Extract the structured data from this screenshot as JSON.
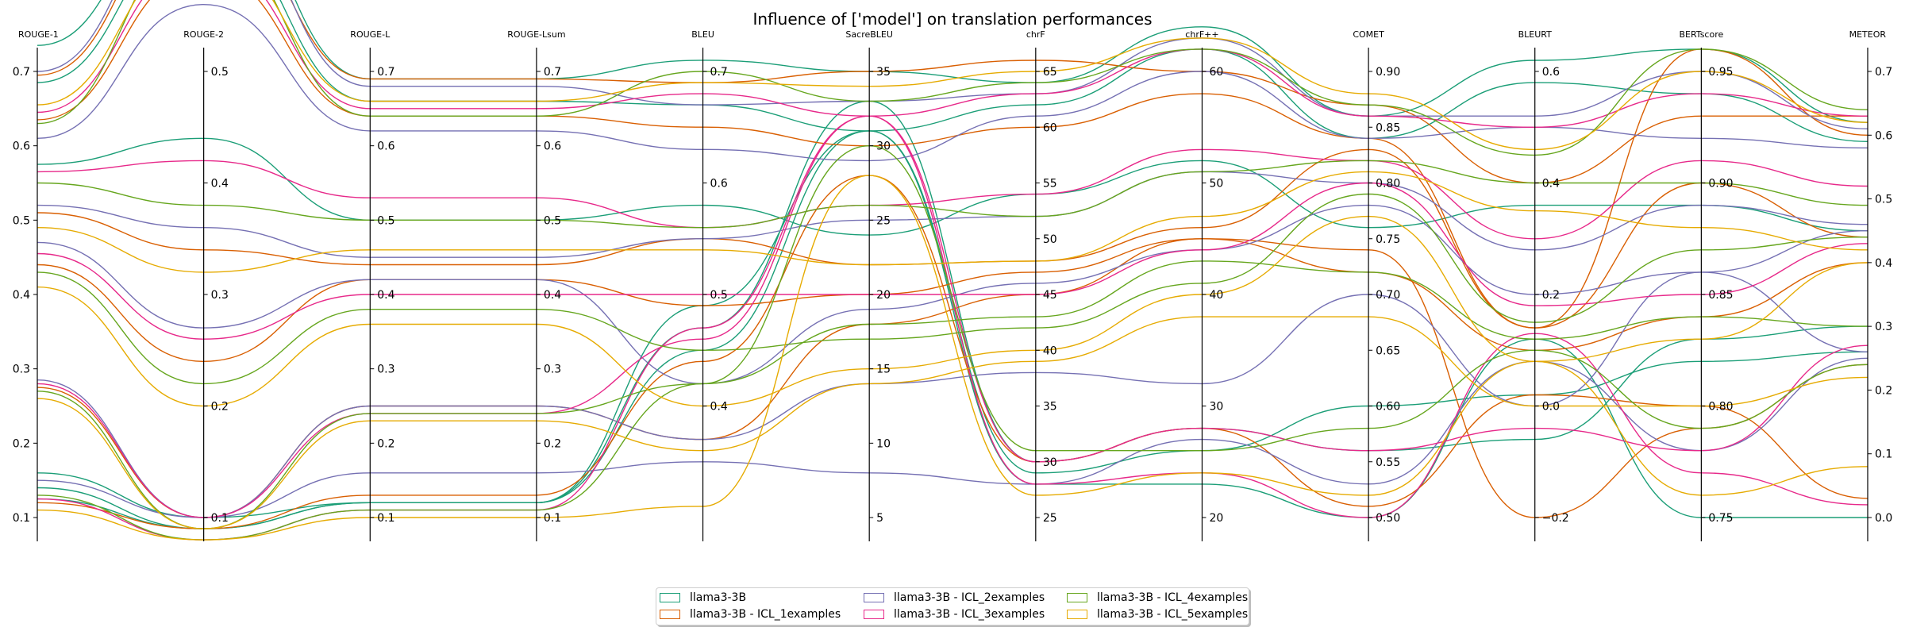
{
  "chart_data": {
    "type": "parallel-coordinates",
    "title": "Influence of ['model'] on translation performances",
    "axes": [
      {
        "name": "ROUGE-1",
        "ticks": [
          "0.1",
          "0.2",
          "0.3",
          "0.4",
          "0.5",
          "0.6",
          "0.7"
        ],
        "range": [
          0.1,
          0.7
        ],
        "tick_side": "left"
      },
      {
        "name": "ROUGE-2",
        "ticks": [
          "0.1",
          "0.2",
          "0.3",
          "0.4",
          "0.5"
        ],
        "range": [
          0.1,
          0.5
        ],
        "tick_side": "right"
      },
      {
        "name": "ROUGE-L",
        "ticks": [
          "0.1",
          "0.2",
          "0.3",
          "0.4",
          "0.5",
          "0.6",
          "0.7"
        ],
        "range": [
          0.1,
          0.7
        ],
        "tick_side": "right"
      },
      {
        "name": "ROUGE-Lsum",
        "ticks": [
          "0.1",
          "0.2",
          "0.3",
          "0.4",
          "0.5",
          "0.6",
          "0.7"
        ],
        "range": [
          0.1,
          0.7
        ],
        "tick_side": "right"
      },
      {
        "name": "BLEU",
        "ticks": [
          "0.4",
          "0.5",
          "0.6",
          "0.7"
        ],
        "range": [
          0.3,
          0.7
        ],
        "tick_side": "right"
      },
      {
        "name": "SacreBLEU",
        "ticks": [
          "5",
          "10",
          "15",
          "20",
          "25",
          "30",
          "35"
        ],
        "range": [
          5,
          35
        ],
        "tick_side": "right"
      },
      {
        "name": "chrF",
        "ticks": [
          "25",
          "30",
          "35",
          "40",
          "45",
          "50",
          "55",
          "60",
          "65"
        ],
        "range": [
          25,
          65
        ],
        "tick_side": "right"
      },
      {
        "name": "chrF++",
        "ticks": [
          "20",
          "30",
          "40",
          "50",
          "60"
        ],
        "range": [
          20,
          60
        ],
        "tick_side": "right"
      },
      {
        "name": "COMET",
        "ticks": [
          "0.50",
          "0.55",
          "0.60",
          "0.65",
          "0.70",
          "0.75",
          "0.80",
          "0.85",
          "0.90"
        ],
        "range": [
          0.5,
          0.9
        ],
        "tick_side": "right"
      },
      {
        "name": "BLEURT",
        "ticks": [
          "−0.2",
          "0.0",
          "0.2",
          "0.4",
          "0.6"
        ],
        "range": [
          -0.2,
          0.6
        ],
        "tick_side": "right"
      },
      {
        "name": "BERTscore",
        "ticks": [
          "0.75",
          "0.80",
          "0.85",
          "0.90",
          "0.95"
        ],
        "range": [
          0.75,
          0.95
        ],
        "tick_side": "right"
      },
      {
        "name": "METEOR",
        "ticks": [
          "0.0",
          "0.1",
          "0.2",
          "0.3",
          "0.4",
          "0.5",
          "0.6",
          "0.7"
        ],
        "range": [
          0.0,
          0.7
        ],
        "tick_side": "right"
      }
    ],
    "series": [
      {
        "name": "llama3-3B",
        "color": "#1b9e77",
        "lines": [
          [
            0.735,
            0.67,
            0.69,
            0.69,
            0.71,
            35,
            64,
            64,
            0.86,
            0.62,
            0.96,
            0.62
          ],
          [
            0.685,
            0.63,
            0.66,
            0.66,
            0.67,
            31,
            62,
            62,
            0.84,
            0.58,
            0.94,
            0.59
          ],
          [
            0.575,
            0.44,
            0.5,
            0.5,
            0.58,
            24,
            54,
            52,
            0.76,
            0.36,
            0.89,
            0.45
          ],
          [
            0.16,
            0.1,
            0.12,
            0.12,
            0.47,
            33,
            30,
            28,
            0.56,
            -0.06,
            0.83,
            0.3
          ],
          [
            0.14,
            0.09,
            0.12,
            0.12,
            0.49,
            31,
            29,
            26,
            0.6,
            0.02,
            0.82,
            0.26
          ],
          [
            0.125,
            0.09,
            0.12,
            0.12,
            0.45,
            31,
            28,
            23,
            0.5,
            0.12,
            0.75,
            0.0
          ]
        ]
      },
      {
        "name": "llama3-3B - ICL_1examples",
        "color": "#d95f02",
        "lines": [
          [
            0.695,
            0.65,
            0.69,
            0.69,
            0.69,
            35,
            66,
            60,
            0.87,
            0.4,
            0.93,
            0.63
          ],
          [
            0.635,
            0.59,
            0.64,
            0.64,
            0.65,
            30,
            60,
            58,
            0.84,
            0.14,
            0.96,
            0.6
          ],
          [
            0.51,
            0.34,
            0.44,
            0.44,
            0.55,
            22,
            48,
            46,
            0.83,
            0.14,
            0.9,
            0.44
          ],
          [
            0.44,
            0.24,
            0.42,
            0.42,
            0.49,
            20,
            47,
            45,
            0.72,
            0.1,
            0.84,
            0.4
          ],
          [
            0.275,
            0.1,
            0.25,
            0.25,
            0.37,
            18,
            45,
            45,
            0.74,
            -0.2,
            0.79,
            0.24
          ],
          [
            0.12,
            0.09,
            0.13,
            0.13,
            0.44,
            28,
            30,
            28,
            0.51,
            0.02,
            0.8,
            0.03
          ]
        ]
      },
      {
        "name": "llama3-3B - ICL_2examples",
        "color": "#7570b3",
        "lines": [
          [
            0.7,
            0.66,
            0.68,
            0.68,
            0.67,
            33,
            63,
            63,
            0.86,
            0.52,
            0.95,
            0.61
          ],
          [
            0.61,
            0.56,
            0.62,
            0.62,
            0.63,
            29,
            61,
            60,
            0.84,
            0.5,
            0.92,
            0.58
          ],
          [
            0.52,
            0.36,
            0.45,
            0.45,
            0.55,
            25,
            52,
            51,
            0.8,
            0.28,
            0.89,
            0.46
          ],
          [
            0.47,
            0.27,
            0.42,
            0.42,
            0.42,
            19,
            46,
            44,
            0.78,
            0.2,
            0.86,
            0.45
          ],
          [
            0.285,
            0.1,
            0.25,
            0.25,
            0.37,
            14,
            38,
            32,
            0.7,
            0.0,
            0.86,
            0.26
          ],
          [
            0.15,
            0.1,
            0.16,
            0.16,
            0.35,
            8,
            28,
            27,
            0.53,
            0.08,
            0.78,
            0.25
          ]
        ]
      },
      {
        "name": "llama3-3B - ICL_3examples",
        "color": "#e7298a",
        "lines": [
          [
            0.645,
            0.6,
            0.65,
            0.65,
            0.68,
            32,
            63,
            62,
            0.86,
            0.5,
            0.94,
            0.63
          ],
          [
            0.565,
            0.42,
            0.53,
            0.53,
            0.56,
            26,
            54,
            53,
            0.82,
            0.3,
            0.91,
            0.52
          ],
          [
            0.455,
            0.26,
            0.4,
            0.4,
            0.5,
            20,
            45,
            44,
            0.8,
            0.18,
            0.85,
            0.43
          ],
          [
            0.28,
            0.1,
            0.24,
            0.24,
            0.46,
            32,
            30,
            28,
            0.56,
            -0.04,
            0.78,
            0.27
          ],
          [
            0.125,
            0.08,
            0.11,
            0.11,
            0.47,
            32,
            28,
            24,
            0.5,
            0.13,
            0.77,
            0.02
          ]
        ]
      },
      {
        "name": "llama3-3B - ICL_4examples",
        "color": "#66a61e",
        "lines": [
          [
            0.63,
            0.62,
            0.64,
            0.64,
            0.7,
            33,
            64,
            62,
            0.87,
            0.45,
            0.96,
            0.64
          ],
          [
            0.55,
            0.38,
            0.5,
            0.5,
            0.56,
            26,
            52,
            51,
            0.82,
            0.4,
            0.9,
            0.49
          ],
          [
            0.43,
            0.22,
            0.38,
            0.38,
            0.45,
            17,
            42,
            41,
            0.79,
            0.15,
            0.87,
            0.44
          ],
          [
            0.27,
            0.09,
            0.24,
            0.24,
            0.42,
            18,
            43,
            43,
            0.72,
            0.12,
            0.84,
            0.3
          ],
          [
            0.13,
            0.08,
            0.11,
            0.11,
            0.42,
            30,
            31,
            26,
            0.58,
            0.1,
            0.79,
            0.24
          ]
        ]
      },
      {
        "name": "llama3-3B - ICL_5examples",
        "color": "#e6ab02",
        "lines": [
          [
            0.655,
            0.61,
            0.66,
            0.66,
            0.69,
            34,
            65,
            63,
            0.88,
            0.46,
            0.95,
            0.62
          ],
          [
            0.49,
            0.32,
            0.46,
            0.46,
            0.54,
            22,
            48,
            47,
            0.81,
            0.35,
            0.88,
            0.42
          ],
          [
            0.41,
            0.2,
            0.36,
            0.36,
            0.4,
            15,
            40,
            40,
            0.77,
            0.08,
            0.83,
            0.4
          ],
          [
            0.26,
            0.09,
            0.23,
            0.23,
            0.36,
            14,
            39,
            38,
            0.68,
            0.0,
            0.8,
            0.22
          ],
          [
            0.11,
            0.08,
            0.1,
            0.1,
            0.31,
            28,
            27,
            24,
            0.52,
            0.08,
            0.76,
            0.08
          ]
        ]
      }
    ],
    "legend_position": "bottom-center"
  }
}
